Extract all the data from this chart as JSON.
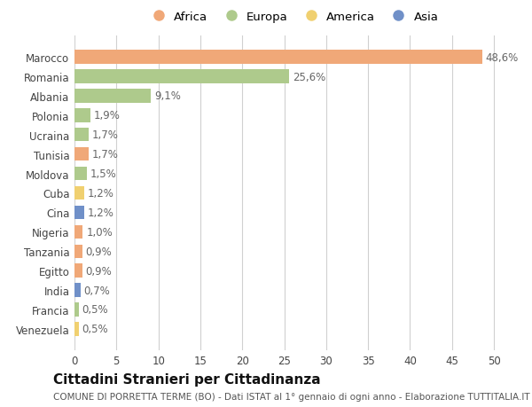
{
  "countries": [
    "Marocco",
    "Romania",
    "Albania",
    "Polonia",
    "Ucraina",
    "Tunisia",
    "Moldova",
    "Cuba",
    "Cina",
    "Nigeria",
    "Tanzania",
    "Egitto",
    "India",
    "Francia",
    "Venezuela"
  ],
  "values": [
    48.6,
    25.6,
    9.1,
    1.9,
    1.7,
    1.7,
    1.5,
    1.2,
    1.2,
    1.0,
    0.9,
    0.9,
    0.7,
    0.5,
    0.5
  ],
  "labels": [
    "48,6%",
    "25,6%",
    "9,1%",
    "1,9%",
    "1,7%",
    "1,7%",
    "1,5%",
    "1,2%",
    "1,2%",
    "1,0%",
    "0,9%",
    "0,9%",
    "0,7%",
    "0,5%",
    "0,5%"
  ],
  "continents": [
    "Africa",
    "Europa",
    "Europa",
    "Europa",
    "Europa",
    "Africa",
    "Europa",
    "America",
    "Asia",
    "Africa",
    "Africa",
    "Africa",
    "Asia",
    "Europa",
    "America"
  ],
  "continent_colors": {
    "Africa": "#F0A878",
    "Europa": "#AECA8C",
    "America": "#F0D070",
    "Asia": "#7090C8"
  },
  "legend_order": [
    "Africa",
    "Europa",
    "America",
    "Asia"
  ],
  "title": "Cittadini Stranieri per Cittadinanza",
  "subtitle": "COMUNE DI PORRETTA TERME (BO) - Dati ISTAT al 1° gennaio di ogni anno - Elaborazione TUTTITALIA.IT",
  "xlim": [
    0,
    52
  ],
  "xticks": [
    0,
    5,
    10,
    15,
    20,
    25,
    30,
    35,
    40,
    45,
    50
  ],
  "background_color": "#ffffff",
  "grid_color": "#d0d0d0",
  "bar_height": 0.7,
  "label_fontsize": 8.5,
  "tick_fontsize": 8.5,
  "title_fontsize": 11,
  "subtitle_fontsize": 7.5
}
